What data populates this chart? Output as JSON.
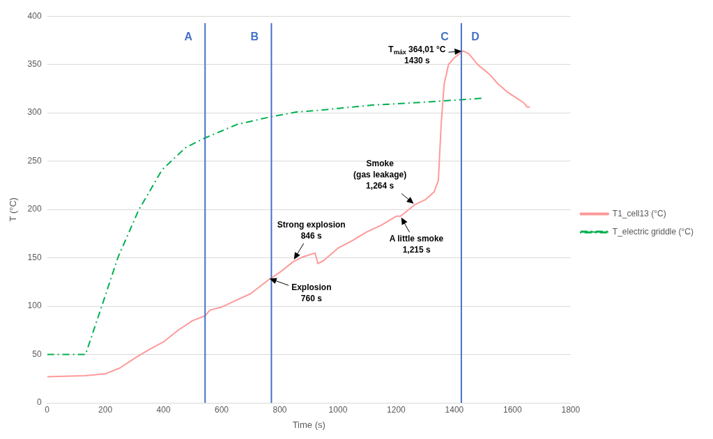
{
  "chart_data": {
    "type": "line",
    "xlabel": "Time (s)",
    "ylabel": "T (°C)",
    "xlim": [
      0,
      1800
    ],
    "xticks": [
      0,
      200,
      400,
      600,
      800,
      1000,
      1200,
      1400,
      1600,
      1800
    ],
    "ylim": [
      0,
      400
    ],
    "yticks": [
      0,
      50,
      100,
      150,
      200,
      250,
      300,
      350,
      400
    ],
    "grid": "y",
    "legend": "right",
    "series": [
      {
        "name": "T1_cell13 (°C)",
        "color": "#ff9999",
        "line_style": "solid",
        "x": [
          0,
          130,
          200,
          250,
          300,
          350,
          400,
          450,
          500,
          543,
          560,
          600,
          650,
          700,
          760,
          800,
          846,
          880,
          921,
          931,
          950,
          1000,
          1050,
          1100,
          1150,
          1200,
          1215,
          1264,
          1300,
          1330,
          1345,
          1355,
          1365,
          1380,
          1400,
          1430,
          1450,
          1480,
          1500,
          1520,
          1550,
          1580,
          1610,
          1640,
          1650,
          1660
        ],
        "values": [
          27,
          28,
          30,
          36,
          46,
          55,
          63,
          75,
          85,
          90,
          96,
          99,
          106,
          113,
          127,
          135,
          146,
          151,
          155,
          144,
          147,
          160,
          168,
          177,
          184,
          193,
          193,
          205,
          210,
          218,
          230,
          290,
          330,
          350,
          357,
          364,
          361,
          350,
          345,
          340,
          330,
          322,
          316,
          310,
          306,
          306
        ]
      },
      {
        "name": "T_electric griddle (°C)",
        "color": "#00b050",
        "line_style": "dashed",
        "x": [
          0,
          132,
          189,
          243,
          314,
          395,
          476,
          543,
          653,
          771,
          860,
          913,
          1118,
          1297,
          1427,
          1493
        ],
        "values": [
          50,
          50,
          101,
          150,
          199,
          241,
          264,
          274,
          288,
          296,
          301,
          302,
          308,
          311,
          313.6,
          315
        ]
      }
    ],
    "ref_lines": [
      {
        "axis": "x",
        "value": 543,
        "label": "A",
        "color": "#4472c4"
      },
      {
        "axis": "x",
        "value": 771,
        "label": "B",
        "color": "#4472c4"
      },
      {
        "axis": "x",
        "value": 1424,
        "label": "C",
        "color": "#4472c4"
      }
    ],
    "annotations": [
      "D",
      {
        "text": "Explosion\n760 s",
        "x": 760,
        "y": 129
      },
      {
        "text": "Strong explosion\n846 s",
        "x": 846,
        "y": 147
      },
      {
        "text": "A little smoke\n1,215 s",
        "x": 1215,
        "y": 193
      },
      {
        "text": "Smoke\n(gas leakage)\n1,264 s",
        "x": 1264,
        "y": 205
      },
      {
        "text": "T$_{máx}$ 364,01 °C\n1430 s",
        "x": 1430,
        "y": 364
      }
    ]
  }
}
